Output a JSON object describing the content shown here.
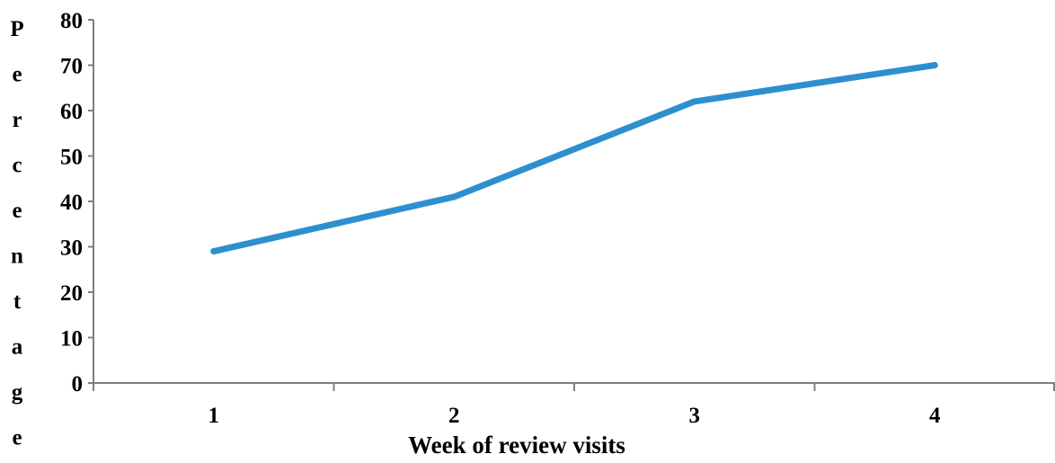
{
  "chart_data": {
    "type": "line",
    "title": "",
    "xlabel": "Week of  review visits",
    "ylabel": "Percentage",
    "categories": [
      "1",
      "2",
      "3",
      "4"
    ],
    "series": [
      {
        "values": [
          29,
          41,
          62,
          70
        ]
      }
    ],
    "ylim": [
      0,
      80
    ],
    "yticks": [
      "0",
      "10",
      "20",
      "30",
      "40",
      "50",
      "60",
      "70",
      "80"
    ],
    "grid": false,
    "legend": "none",
    "colors": {
      "line": "#2E8FCE",
      "axis": "#7F7F7F",
      "text": "#000000"
    }
  }
}
